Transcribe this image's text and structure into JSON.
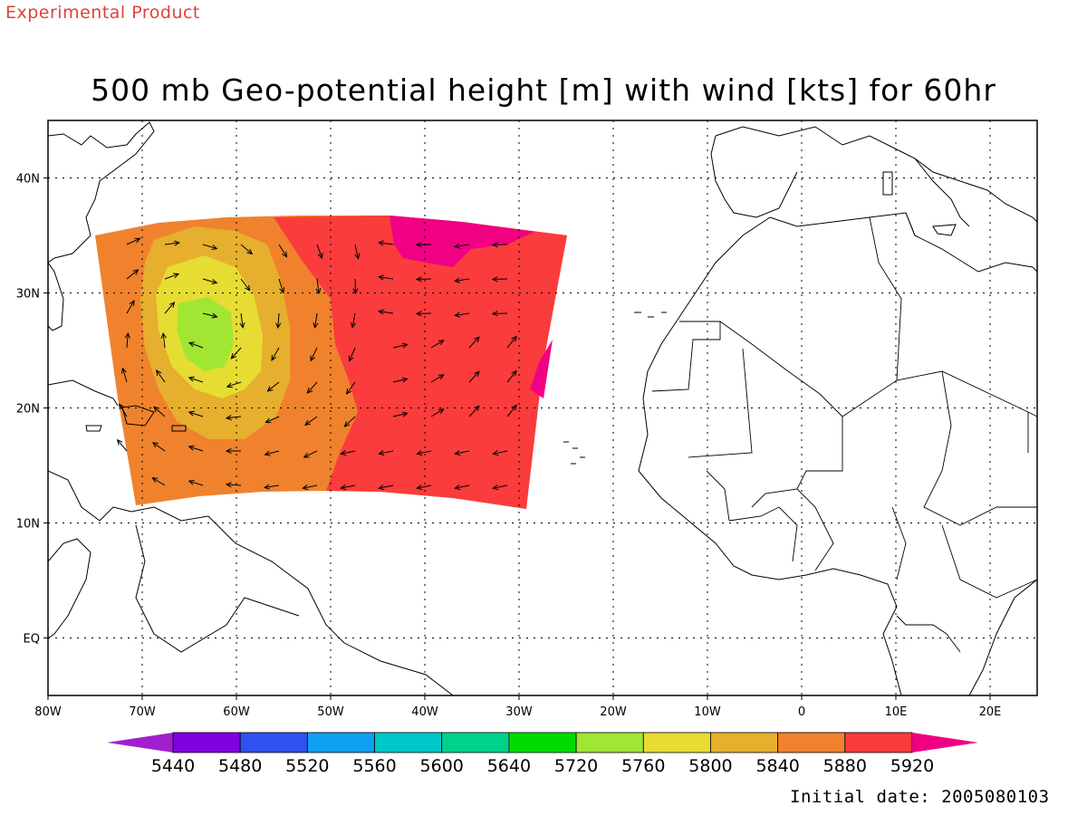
{
  "header": {
    "product_label": "Experimental Product",
    "title": "500 mb Geo-potential height [m] with wind [kts] for 60hr"
  },
  "footer": {
    "initial_date": "Initial date: 2005080103"
  },
  "chart_data": {
    "type": "heatmap",
    "title": "500 mb Geo-potential height [m] with wind [kts] for 60hr",
    "x_axis": {
      "range": [
        -80,
        25
      ],
      "ticks": [
        -80,
        -70,
        -60,
        -50,
        -40,
        -30,
        -20,
        -10,
        0,
        10,
        20
      ],
      "tick_labels": [
        "80W",
        "70W",
        "60W",
        "50W",
        "40W",
        "30W",
        "20W",
        "10W",
        "0",
        "10E",
        "20E"
      ]
    },
    "y_axis": {
      "range": [
        -5,
        45
      ],
      "ticks": [
        0,
        10,
        20,
        30,
        40
      ],
      "tick_labels": [
        "EQ",
        "10N",
        "20N",
        "30N",
        "40N"
      ]
    },
    "grid": true,
    "colorbar": {
      "labels": [
        "5440",
        "5480",
        "5520",
        "5560",
        "5600",
        "5640",
        "5720",
        "5760",
        "5800",
        "5840",
        "5880",
        "5920"
      ],
      "colors": [
        "#a020d0",
        "#8000e0",
        "#3050f0",
        "#10a0f0",
        "#00c8c8",
        "#00d28c",
        "#00dc00",
        "#a0e632",
        "#e6dc32",
        "#e6af2d",
        "#f0822d",
        "#fa3c3c",
        "#f00082"
      ]
    },
    "domain": {
      "lon_range": [
        -75,
        -25
      ],
      "lat_range": [
        12,
        37
      ]
    },
    "fill_regions": [
      {
        "level": "5840-5880",
        "color": "#f0822d"
      },
      {
        "level": "5880-5920",
        "color": "#fa3c3c"
      },
      {
        "level": ">5920",
        "color": "#f00082"
      },
      {
        "level": "5800-5840",
        "color": "#e6af2d"
      },
      {
        "level": "5760-5800",
        "color": "#e6dc32"
      },
      {
        "level": "5720-5760",
        "color": "#a0e632"
      }
    ]
  }
}
